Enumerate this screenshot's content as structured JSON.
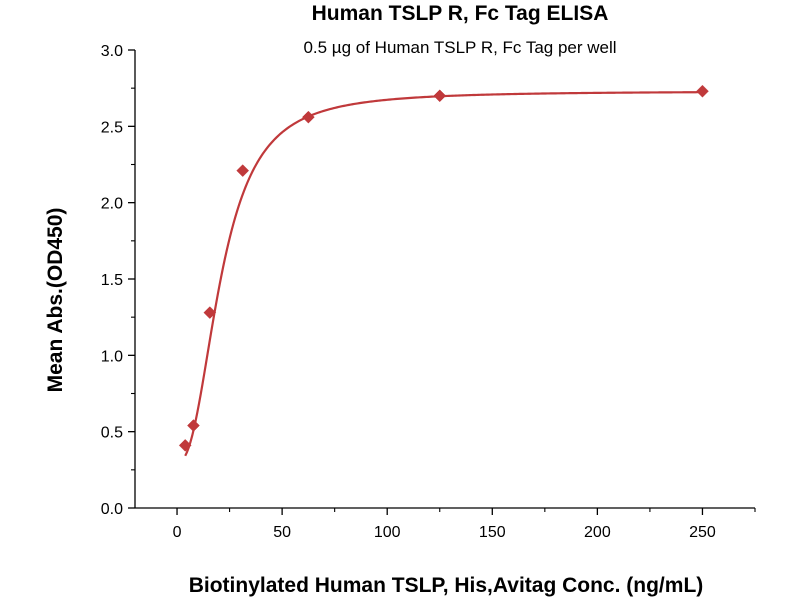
{
  "chart_data": {
    "type": "scatter",
    "title": "Human TSLP R, Fc Tag ELISA",
    "subtitle": "0.5 µg of Human TSLP R, Fc Tag per well",
    "xlabel": "Biotinylated Human TSLP, His,Avitag Conc. (ng/mL)",
    "ylabel": "Mean Abs.(OD450)",
    "xlim": [
      -20,
      275
    ],
    "ylim": [
      0,
      3.0
    ],
    "x_ticks": [
      0,
      50,
      100,
      150,
      200,
      250
    ],
    "y_ticks": [
      0.0,
      0.5,
      1.0,
      1.5,
      2.0,
      2.5,
      3.0
    ],
    "x_tick_labels": [
      "0",
      "50",
      "100",
      "150",
      "200",
      "250"
    ],
    "y_tick_labels": [
      "0.0",
      "0.5",
      "1.0",
      "1.5",
      "2.0",
      "2.5",
      "3.0"
    ],
    "grid": false,
    "legend": "none",
    "series": [
      {
        "marker": "diamond",
        "x": [
          3.9,
          7.8,
          15.6,
          31.25,
          62.5,
          125,
          250
        ],
        "y": [
          0.41,
          0.54,
          1.28,
          2.21,
          2.56,
          2.7,
          2.73
        ]
      }
    ],
    "fit_curve": {
      "model": "4PL",
      "bottom": 0.3,
      "top": 2.73,
      "ec50": 21,
      "hill": 2.4
    }
  },
  "colors": {
    "series": "#c0393b",
    "axis": "#000000",
    "background": "#ffffff"
  }
}
